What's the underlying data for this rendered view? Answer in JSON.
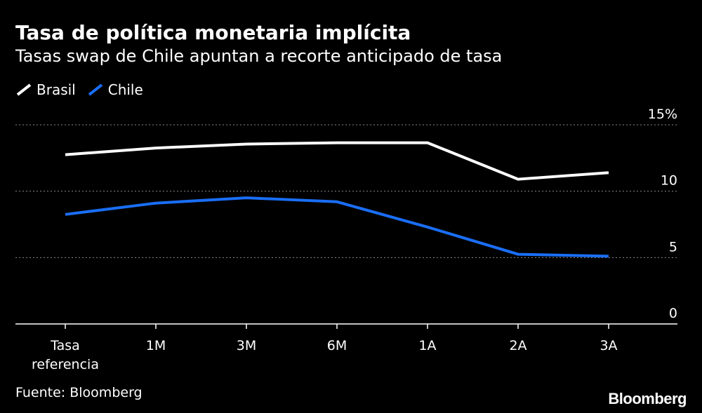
{
  "header": {
    "title": "Tasa de política monetaria implícita",
    "subtitle": "Tasas swap de Chile apuntan a recorte anticipado de tasa"
  },
  "footer": {
    "source": "Fuente: Bloomberg",
    "brand": "Bloomberg"
  },
  "colors": {
    "background": "#000000",
    "brasil": "#ffffff",
    "chile": "#1a6ef5",
    "grid": "#8a8a8a"
  },
  "chart_data": {
    "type": "line",
    "title": "Tasa de política monetaria implícita",
    "subtitle": "Tasas swap de Chile apuntan a recorte anticipado de tasa",
    "categories": [
      [
        "Tasa",
        "referencia"
      ],
      [
        "1M"
      ],
      [
        "3M"
      ],
      [
        "6M"
      ],
      [
        "1A"
      ],
      [
        "2A"
      ],
      [
        "3A"
      ]
    ],
    "series": [
      {
        "name": "Brasil",
        "color": "#ffffff",
        "values": [
          12.75,
          13.25,
          13.55,
          13.65,
          13.65,
          10.9,
          11.4
        ]
      },
      {
        "name": "Chile",
        "color": "#1a6ef5",
        "values": [
          8.25,
          9.1,
          9.5,
          9.2,
          7.3,
          5.25,
          5.1
        ]
      }
    ],
    "ylim": [
      0,
      15
    ],
    "yticks": [
      0,
      5,
      10,
      15
    ],
    "ytick_labels": [
      "0",
      "5",
      "10",
      "15%"
    ],
    "xlabel": "",
    "ylabel": "",
    "grid": "horizontal dotted",
    "legend_position": "top-left",
    "yaxis_position": "right"
  }
}
